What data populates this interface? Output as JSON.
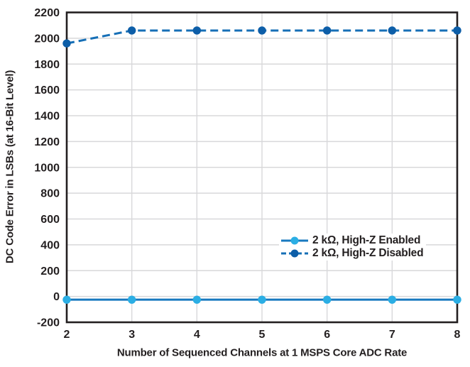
{
  "chart_data": {
    "type": "line",
    "title": "",
    "xlabel": "Number of Sequenced Channels at 1 MSPS Core ADC Rate",
    "ylabel": "DC Code Error in LSBs (at 16-Bit Level)",
    "x": [
      2,
      3,
      4,
      5,
      6,
      7,
      8
    ],
    "xlim": [
      2,
      8
    ],
    "ylim": [
      -200,
      2200
    ],
    "x_ticks": [
      2,
      3,
      4,
      5,
      6,
      7,
      8
    ],
    "y_ticks": [
      -200,
      0,
      200,
      400,
      600,
      800,
      1000,
      1200,
      1400,
      1600,
      1800,
      2000,
      2200
    ],
    "grid": true,
    "legend_position": "inside-right-middle",
    "series": [
      {
        "name": "2 kΩ, High-Z Enabled",
        "values": [
          -25,
          -25,
          -25,
          -25,
          -25,
          -25,
          -25
        ],
        "line_color": "#1879BF",
        "marker_color": "#2BAEE4",
        "dash": "solid"
      },
      {
        "name": "2 kΩ, High-Z Disabled",
        "values": [
          1960,
          2060,
          2060,
          2060,
          2060,
          2060,
          2060
        ],
        "line_color": "#166FB6",
        "marker_color": "#0D5EA8",
        "dash": "dashed"
      }
    ]
  },
  "styles": {
    "background": "#FFFFFF",
    "text_color": "#231F20",
    "grid_color": "#D8D8DA",
    "axis_color": "#231F20"
  }
}
